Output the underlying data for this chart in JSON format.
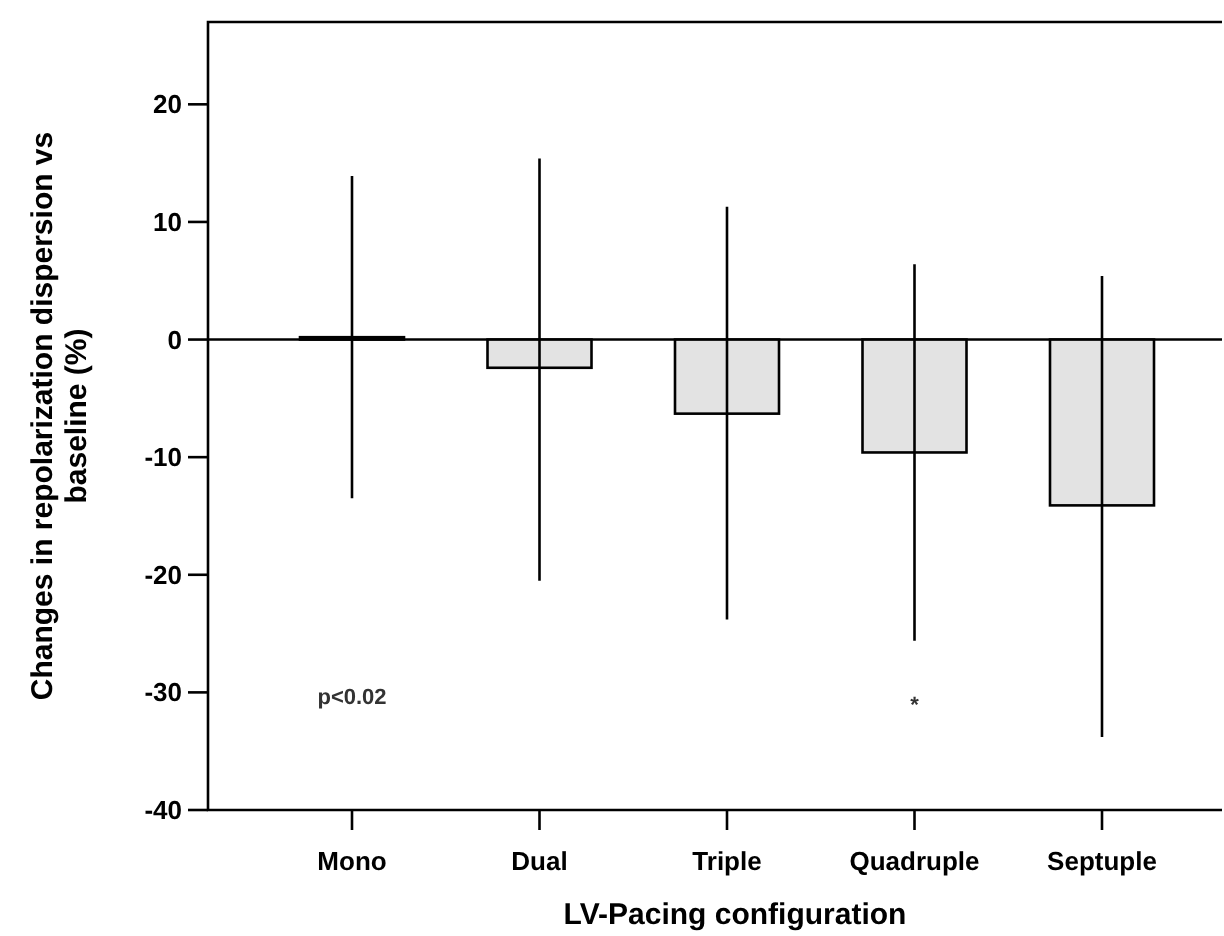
{
  "chart_data": {
    "type": "bar",
    "xlabel": "LV-Pacing configuration",
    "ylabel": "Changes in repolarization dispersion vs baseline (%)",
    "categories": [
      "Mono",
      "Dual",
      "Triple",
      "Quadruple",
      "Septuple"
    ],
    "values": [
      0.2,
      -2.4,
      -6.3,
      -9.6,
      -14.1
    ],
    "errors": [
      [
        -13.5,
        13.9
      ],
      [
        -20.5,
        15.4
      ],
      [
        -23.8,
        11.3
      ],
      [
        -25.6,
        6.4
      ],
      [
        -33.8,
        5.4
      ]
    ],
    "color": "#e3e3e3",
    "ylim": [
      -40,
      27
    ],
    "yticks": [
      -40,
      -30,
      -20,
      -10,
      0,
      10,
      20
    ],
    "annotations": [
      "p<0.02",
      "*"
    ]
  }
}
